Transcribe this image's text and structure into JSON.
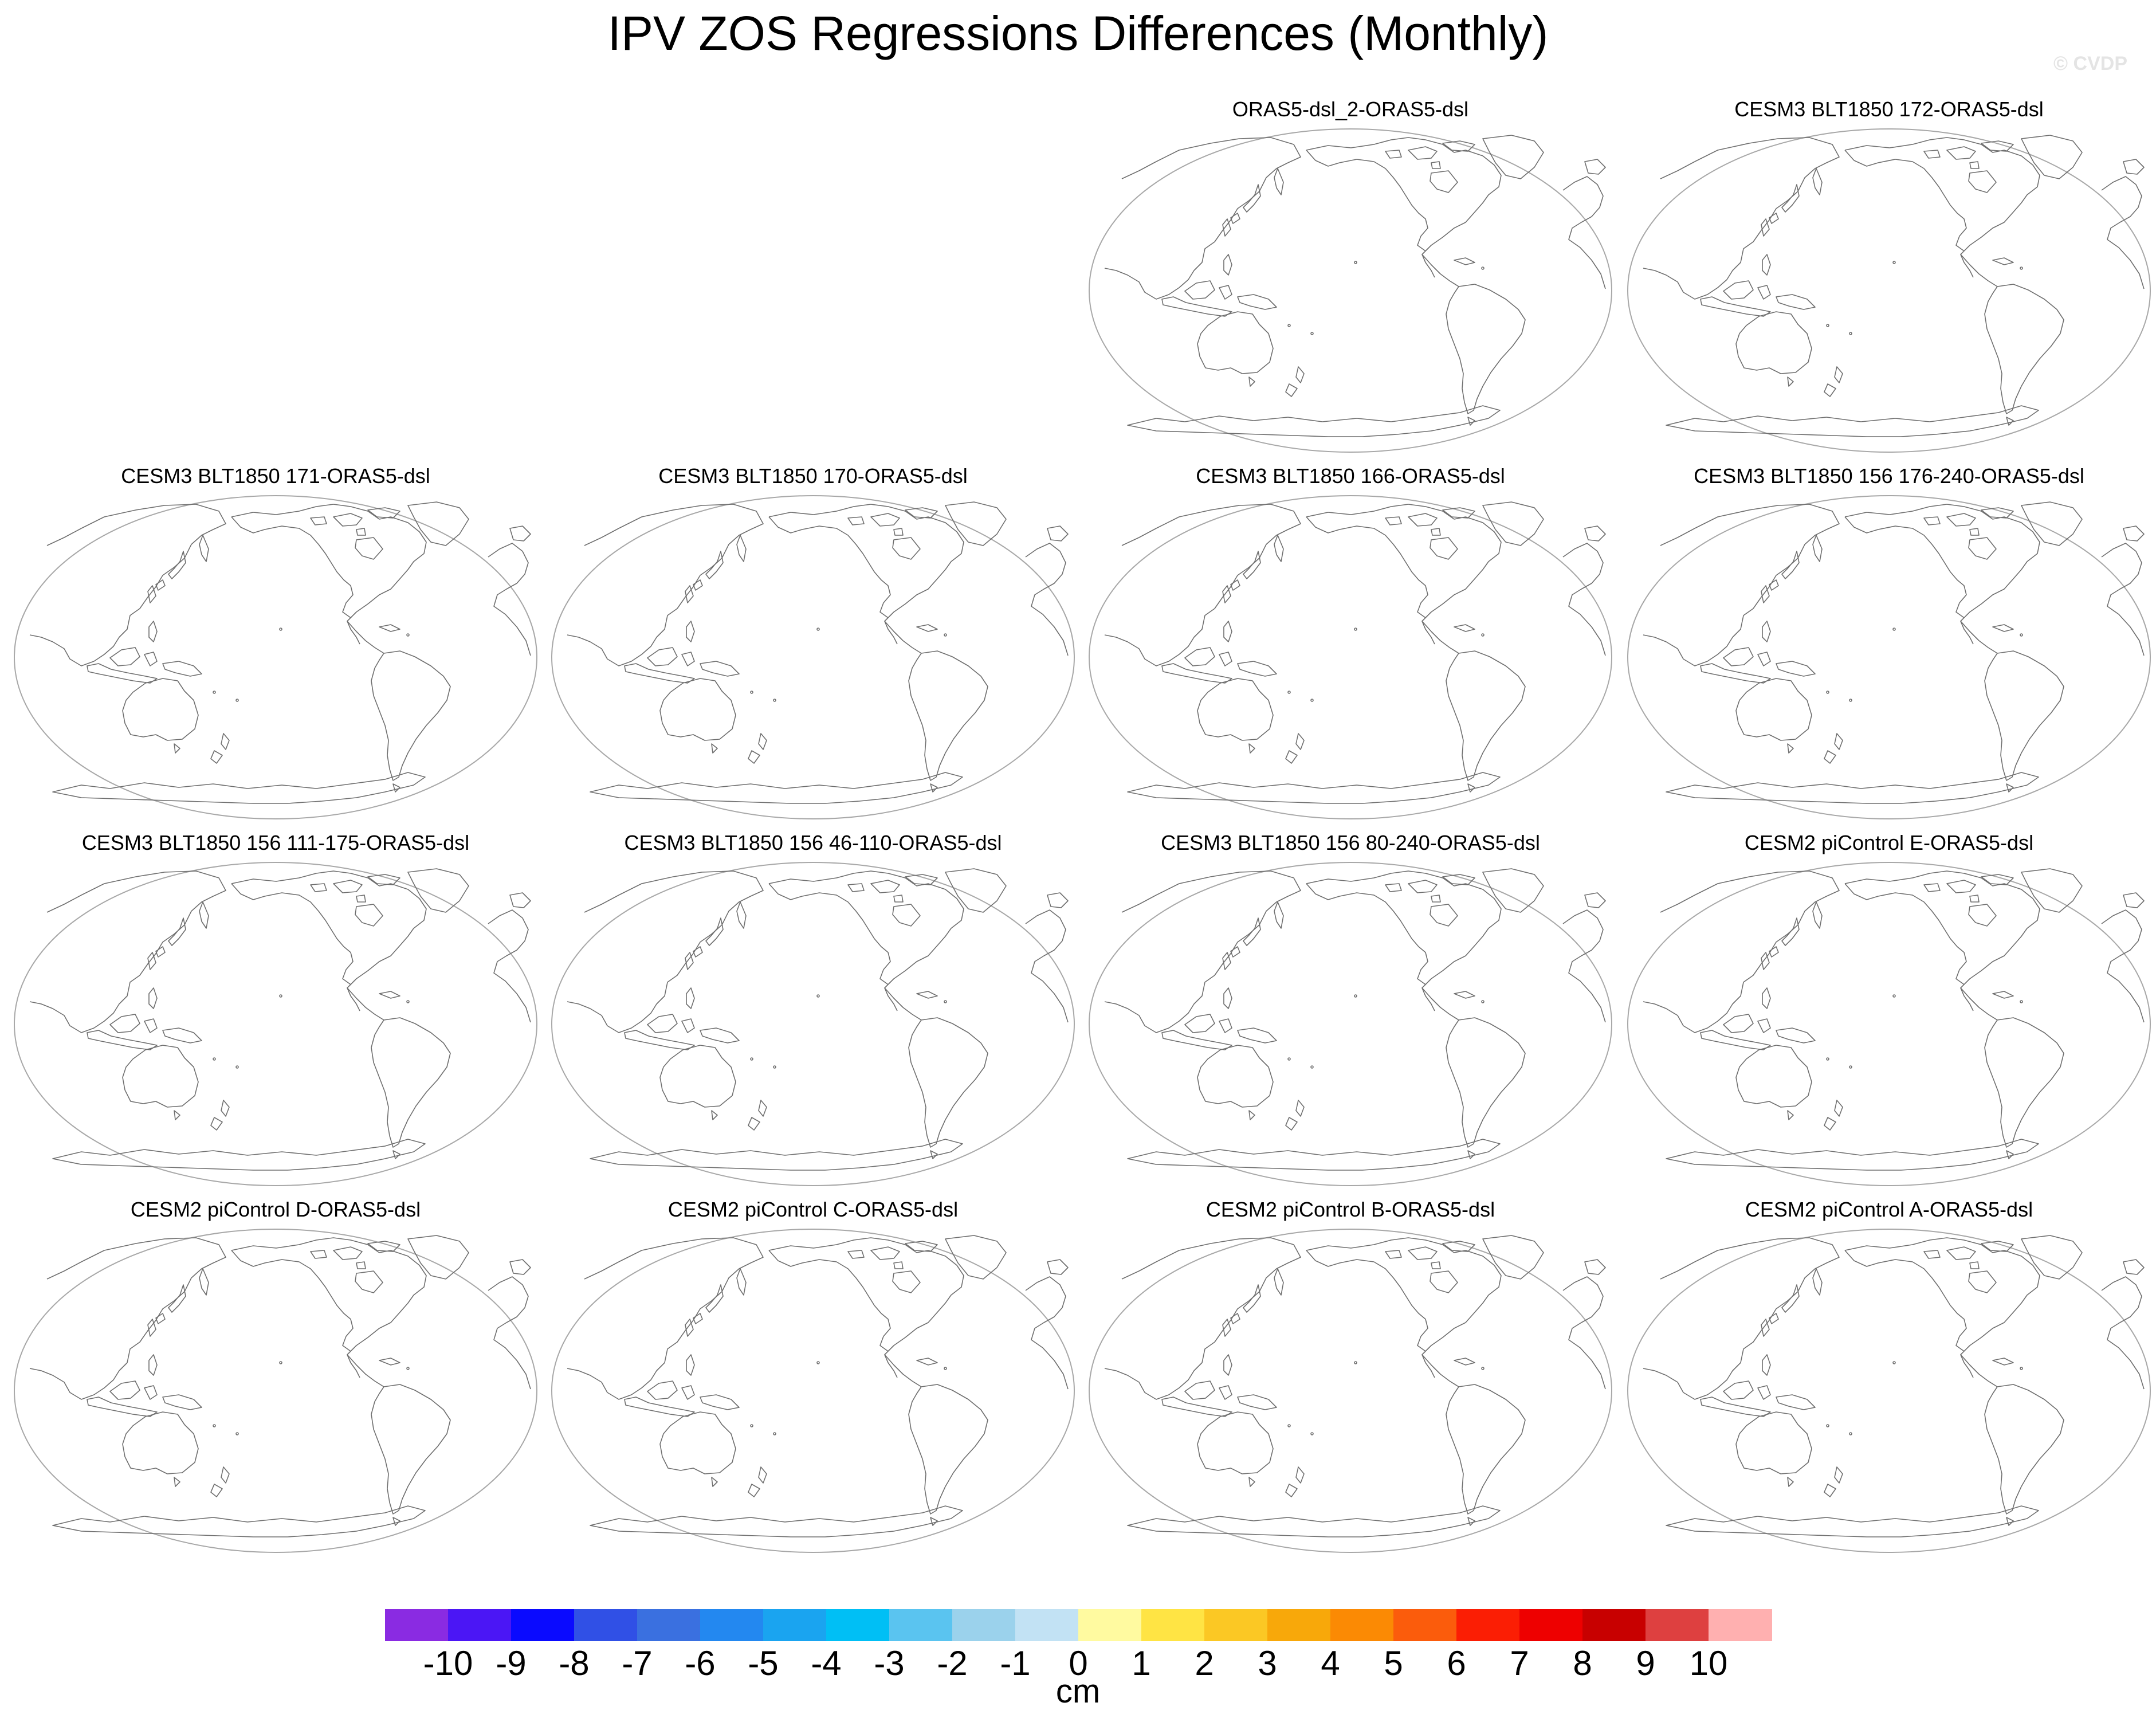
{
  "title": "IPV ZOS Regressions Differences (Monthly)",
  "watermark": "© CVDP",
  "panels": [
    {
      "label": "ORAS5-dsl_2-ORAS5-dsl"
    },
    {
      "label": "CESM3 BLT1850 172-ORAS5-dsl"
    },
    {
      "label": "CESM3 BLT1850 171-ORAS5-dsl"
    },
    {
      "label": "CESM3 BLT1850 170-ORAS5-dsl"
    },
    {
      "label": "CESM3 BLT1850 166-ORAS5-dsl"
    },
    {
      "label": "CESM3 BLT1850 156 176-240-ORAS5-dsl"
    },
    {
      "label": "CESM3 BLT1850 156 111-175-ORAS5-dsl"
    },
    {
      "label": "CESM3 BLT1850 156 46-110-ORAS5-dsl"
    },
    {
      "label": "CESM3 BLT1850 156 80-240-ORAS5-dsl"
    },
    {
      "label": "CESM2 piControl E-ORAS5-dsl"
    },
    {
      "label": "CESM2 piControl D-ORAS5-dsl"
    },
    {
      "label": "CESM2 piControl C-ORAS5-dsl"
    },
    {
      "label": "CESM2 piControl B-ORAS5-dsl"
    },
    {
      "label": "CESM2 piControl A-ORAS5-dsl"
    }
  ],
  "colorbar": {
    "units": "cm",
    "ticks": [
      "-10",
      "-9",
      "-8",
      "-7",
      "-6",
      "-5",
      "-4",
      "-3",
      "-2",
      "-1",
      "0",
      "1",
      "2",
      "3",
      "4",
      "5",
      "6",
      "7",
      "8",
      "9",
      "10"
    ],
    "colors": [
      "#8a2be2",
      "#4b16f5",
      "#0a0aff",
      "#3050e6",
      "#3a70e0",
      "#2388f0",
      "#1aa4f0",
      "#00bff5",
      "#5ac4f0",
      "#9bd2ec",
      "#c2e2f4",
      "#fffaa0",
      "#ffe444",
      "#fbc824",
      "#f8a80a",
      "#fb8a04",
      "#fb5c0c",
      "#fb1e04",
      "#ee0000",
      "#c80000",
      "#de4040",
      "#ffb0b0"
    ]
  },
  "map": {
    "line_color": "#6e6e6e",
    "outline_color": "#a8a8a8"
  }
}
